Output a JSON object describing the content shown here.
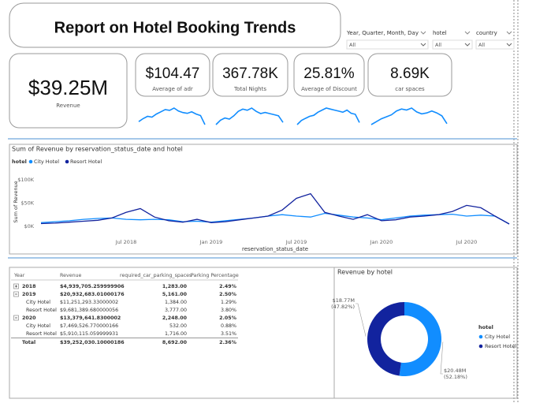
{
  "header": {
    "title": "Report on Hotel Booking Trends"
  },
  "filters": [
    {
      "label": "Year, Quarter, Month, Day",
      "value": "All"
    },
    {
      "label": "hotel",
      "value": "All"
    },
    {
      "label": "country",
      "value": "All"
    }
  ],
  "kpis": [
    {
      "value": "$39.25M",
      "label": "Revenue"
    },
    {
      "value": "$104.47",
      "label": "Average of adr",
      "trend": [
        60,
        80,
        95,
        90,
        110,
        125,
        140,
        135,
        150,
        130,
        120,
        115,
        125,
        110,
        100,
        40
      ]
    },
    {
      "value": "367.78K",
      "label": "Total Nights",
      "trend": [
        50,
        70,
        80,
        75,
        90,
        110,
        120,
        115,
        125,
        110,
        100,
        105,
        100,
        95,
        90,
        60
      ]
    },
    {
      "value": "25.81%",
      "label": "Average of Discount",
      "trend": [
        40,
        60,
        70,
        80,
        85,
        100,
        110,
        120,
        115,
        110,
        105,
        100,
        110,
        95,
        90,
        50
      ]
    },
    {
      "value": "8.69K",
      "label": "car spaces",
      "trend": [
        40,
        55,
        70,
        80,
        90,
        110,
        120,
        115,
        125,
        105,
        95,
        100,
        110,
        100,
        85,
        45
      ]
    }
  ],
  "chart_data": [
    {
      "type": "line",
      "title": "Sum of Revenue by reservation_status_date and hotel",
      "legend_title": "hotel",
      "legend": "top-left",
      "x_label": "reservation_status_date",
      "y_label": "Sum of Revenue",
      "x": [
        "2018-01",
        "2018-02",
        "2018-03",
        "2018-04",
        "2018-05",
        "2018-06",
        "2018-07",
        "2018-08",
        "2018-09",
        "2018-10",
        "2018-11",
        "2018-12",
        "2019-01",
        "2019-02",
        "2019-03",
        "2019-04",
        "2019-05",
        "2019-06",
        "2019-07",
        "2019-08",
        "2019-09",
        "2019-10",
        "2019-11",
        "2019-12",
        "2020-01",
        "2020-02",
        "2020-03",
        "2020-04",
        "2020-05",
        "2020-06",
        "2020-07",
        "2020-08",
        "2020-09",
        "2020-10"
      ],
      "series": [
        {
          "name": "City Hotel",
          "color": "#118dff",
          "values": [
            8000,
            10000,
            12000,
            15000,
            17000,
            18000,
            15000,
            14000,
            15000,
            14000,
            10000,
            11000,
            9000,
            12000,
            15000,
            18000,
            22000,
            25000,
            22000,
            20000,
            28000,
            24000,
            20000,
            18000,
            14000,
            18000,
            22000,
            24000,
            25000,
            26000,
            22000,
            24000,
            22000,
            5000
          ]
        },
        {
          "name": "Resort Hotel",
          "color": "#12239e",
          "values": [
            6000,
            7000,
            9000,
            11000,
            13000,
            18000,
            30000,
            38000,
            20000,
            12000,
            9000,
            15000,
            8000,
            10000,
            14000,
            18000,
            22000,
            35000,
            60000,
            70000,
            30000,
            22000,
            15000,
            25000,
            12000,
            14000,
            20000,
            22000,
            25000,
            32000,
            45000,
            40000,
            22000,
            5000
          ]
        }
      ],
      "xlim": [
        "2018-01",
        "2020-10"
      ],
      "xticks": [
        {
          "value": "2018-07",
          "label": "Jul 2018"
        },
        {
          "value": "2019-01",
          "label": "Jan 2019"
        },
        {
          "value": "2019-07",
          "label": "Jul 2019"
        },
        {
          "value": "2020-01",
          "label": "Jan 2020"
        },
        {
          "value": "2020-07",
          "label": "Jul 2020"
        }
      ],
      "ylim": [
        0,
        110000
      ],
      "yticks": [
        {
          "value": 0,
          "label": "$0K"
        },
        {
          "value": 50000,
          "label": "$50K"
        },
        {
          "value": 100000,
          "label": "$100K"
        }
      ]
    },
    {
      "type": "pie",
      "title": "Revenue by hotel",
      "legend_title": "hotel",
      "donut": true,
      "categories": [
        "City Hotel",
        "Resort Hotel"
      ],
      "values": [
        20480000,
        18770000
      ],
      "value_labels": [
        "$20.48M",
        "$18.77M"
      ],
      "percent_labels": [
        "(52.18%)",
        "(47.82%)"
      ],
      "colors": [
        "#118dff",
        "#12239e"
      ]
    }
  ],
  "table": {
    "columns": [
      "Year",
      "Revenue",
      "required_car_parking_spaces",
      "Parking Percentage"
    ],
    "rows": [
      [
        "2018",
        "$4,939,705.259999906",
        "1,283.00",
        "2.49%"
      ],
      [
        "2019",
        "$20,932,683.01000176",
        "5,161.00",
        "2.50%"
      ],
      [
        "City Hotel",
        "$11,251,293.33000002",
        "1,384.00",
        "1.29%"
      ],
      [
        "Resort Hotel",
        "$9,681,389.680000056",
        "3,777.00",
        "3.80%"
      ],
      [
        "2020",
        "$13,379,641.8300002",
        "2,248.00",
        "2.05%"
      ],
      [
        "City Hotel",
        "$7,469,526.770000166",
        "532.00",
        "0.88%"
      ],
      [
        "Resort Hotel",
        "$5,910,115.059999931",
        "1,716.00",
        "3.51%"
      ],
      [
        "Total",
        "$39,252,030.10000186",
        "8,692.00",
        "2.36%"
      ]
    ]
  }
}
